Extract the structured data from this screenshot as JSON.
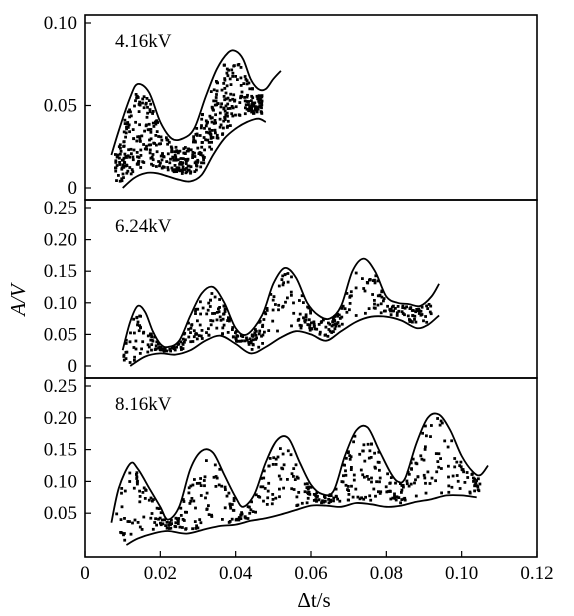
{
  "chart_data": [
    {
      "type": "scatter",
      "panel_label": "4.16kV",
      "xlim": [
        0,
        0.12
      ],
      "ylim": [
        0,
        0.1
      ],
      "yticks": [
        0,
        0.05,
        0.1
      ],
      "ytick_labels": [
        "0",
        "0.05",
        "0.10"
      ],
      "upper_envelope": [
        [
          0.007,
          0.02
        ],
        [
          0.009,
          0.035
        ],
        [
          0.012,
          0.055
        ],
        [
          0.014,
          0.063
        ],
        [
          0.017,
          0.058
        ],
        [
          0.02,
          0.04
        ],
        [
          0.023,
          0.03
        ],
        [
          0.026,
          0.03
        ],
        [
          0.029,
          0.036
        ],
        [
          0.032,
          0.055
        ],
        [
          0.035,
          0.072
        ],
        [
          0.038,
          0.082
        ],
        [
          0.04,
          0.083
        ],
        [
          0.042,
          0.078
        ],
        [
          0.044,
          0.066
        ],
        [
          0.046,
          0.06
        ],
        [
          0.048,
          0.06
        ],
        [
          0.05,
          0.066
        ],
        [
          0.052,
          0.071
        ]
      ],
      "lower_envelope": [
        [
          0.01,
          0.0
        ],
        [
          0.013,
          0.006
        ],
        [
          0.016,
          0.009
        ],
        [
          0.019,
          0.009
        ],
        [
          0.022,
          0.007
        ],
        [
          0.025,
          0.005
        ],
        [
          0.028,
          0.004
        ],
        [
          0.031,
          0.008
        ],
        [
          0.034,
          0.02
        ],
        [
          0.037,
          0.03
        ],
        [
          0.04,
          0.036
        ],
        [
          0.043,
          0.04
        ],
        [
          0.046,
          0.042
        ],
        [
          0.048,
          0.04
        ]
      ],
      "point_cloud": {
        "x_range": [
          0.008,
          0.047
        ],
        "approx_points": 520
      }
    },
    {
      "type": "scatter",
      "panel_label": "6.24kV",
      "xlim": [
        0,
        0.12
      ],
      "ylim": [
        0,
        0.25
      ],
      "yticks": [
        0,
        0.05,
        0.1,
        0.15,
        0.2,
        0.25
      ],
      "ytick_labels": [
        "0",
        "0.05",
        "0.10",
        "0.15",
        "0.20",
        "0.25"
      ],
      "upper_envelope": [
        [
          0.01,
          0.025
        ],
        [
          0.012,
          0.07
        ],
        [
          0.014,
          0.095
        ],
        [
          0.016,
          0.085
        ],
        [
          0.018,
          0.055
        ],
        [
          0.02,
          0.035
        ],
        [
          0.022,
          0.03
        ],
        [
          0.025,
          0.04
        ],
        [
          0.028,
          0.08
        ],
        [
          0.031,
          0.115
        ],
        [
          0.034,
          0.125
        ],
        [
          0.037,
          0.1
        ],
        [
          0.04,
          0.06
        ],
        [
          0.043,
          0.05
        ],
        [
          0.047,
          0.08
        ],
        [
          0.05,
          0.13
        ],
        [
          0.053,
          0.155
        ],
        [
          0.056,
          0.14
        ],
        [
          0.059,
          0.1
        ],
        [
          0.062,
          0.08
        ],
        [
          0.065,
          0.075
        ],
        [
          0.068,
          0.095
        ],
        [
          0.071,
          0.15
        ],
        [
          0.074,
          0.17
        ],
        [
          0.077,
          0.15
        ],
        [
          0.08,
          0.11
        ],
        [
          0.083,
          0.1
        ],
        [
          0.086,
          0.098
        ],
        [
          0.089,
          0.095
        ],
        [
          0.092,
          0.11
        ],
        [
          0.094,
          0.13
        ]
      ],
      "lower_envelope": [
        [
          0.012,
          0.0
        ],
        [
          0.016,
          0.015
        ],
        [
          0.02,
          0.02
        ],
        [
          0.024,
          0.018
        ],
        [
          0.028,
          0.025
        ],
        [
          0.032,
          0.04
        ],
        [
          0.036,
          0.048
        ],
        [
          0.04,
          0.035
        ],
        [
          0.044,
          0.02
        ],
        [
          0.048,
          0.03
        ],
        [
          0.052,
          0.045
        ],
        [
          0.056,
          0.055
        ],
        [
          0.06,
          0.05
        ],
        [
          0.064,
          0.04
        ],
        [
          0.068,
          0.055
        ],
        [
          0.072,
          0.07
        ],
        [
          0.076,
          0.078
        ],
        [
          0.08,
          0.078
        ],
        [
          0.084,
          0.072
        ],
        [
          0.088,
          0.06
        ],
        [
          0.091,
          0.065
        ],
        [
          0.094,
          0.08
        ]
      ],
      "point_cloud": {
        "x_range": [
          0.01,
          0.092
        ],
        "approx_points": 420
      }
    },
    {
      "type": "scatter",
      "panel_label": "8.16kV",
      "xlim": [
        0,
        0.12
      ],
      "ylim": [
        0,
        0.25
      ],
      "xticks": [
        0,
        0.02,
        0.04,
        0.06,
        0.08,
        0.1,
        0.12
      ],
      "xtick_labels": [
        "0",
        "0.02",
        "0.04",
        "0.06",
        "0.08",
        "0.10",
        "0.12"
      ],
      "yticks": [
        0.05,
        0.1,
        0.15,
        0.2,
        0.25
      ],
      "ytick_labels": [
        "0.05",
        "0.10",
        "0.15",
        "0.20",
        "0.25"
      ],
      "upper_envelope": [
        [
          0.007,
          0.035
        ],
        [
          0.009,
          0.09
        ],
        [
          0.012,
          0.128
        ],
        [
          0.014,
          0.12
        ],
        [
          0.017,
          0.09
        ],
        [
          0.02,
          0.06
        ],
        [
          0.022,
          0.04
        ],
        [
          0.025,
          0.06
        ],
        [
          0.028,
          0.12
        ],
        [
          0.031,
          0.148
        ],
        [
          0.034,
          0.145
        ],
        [
          0.037,
          0.11
        ],
        [
          0.04,
          0.075
        ],
        [
          0.042,
          0.06
        ],
        [
          0.045,
          0.08
        ],
        [
          0.048,
          0.13
        ],
        [
          0.051,
          0.165
        ],
        [
          0.054,
          0.168
        ],
        [
          0.057,
          0.13
        ],
        [
          0.06,
          0.095
        ],
        [
          0.063,
          0.08
        ],
        [
          0.066,
          0.085
        ],
        [
          0.069,
          0.14
        ],
        [
          0.072,
          0.18
        ],
        [
          0.075,
          0.185
        ],
        [
          0.078,
          0.15
        ],
        [
          0.081,
          0.115
        ],
        [
          0.083,
          0.1
        ],
        [
          0.085,
          0.105
        ],
        [
          0.088,
          0.16
        ],
        [
          0.091,
          0.2
        ],
        [
          0.094,
          0.205
        ],
        [
          0.097,
          0.18
        ],
        [
          0.1,
          0.14
        ],
        [
          0.103,
          0.115
        ],
        [
          0.105,
          0.11
        ],
        [
          0.107,
          0.125
        ]
      ],
      "lower_envelope": [
        [
          0.011,
          0.0
        ],
        [
          0.014,
          0.01
        ],
        [
          0.018,
          0.018
        ],
        [
          0.022,
          0.022
        ],
        [
          0.027,
          0.018
        ],
        [
          0.032,
          0.025
        ],
        [
          0.036,
          0.03
        ],
        [
          0.04,
          0.032
        ],
        [
          0.044,
          0.038
        ],
        [
          0.048,
          0.042
        ],
        [
          0.052,
          0.048
        ],
        [
          0.056,
          0.055
        ],
        [
          0.06,
          0.062
        ],
        [
          0.064,
          0.062
        ],
        [
          0.068,
          0.06
        ],
        [
          0.072,
          0.066
        ],
        [
          0.076,
          0.064
        ],
        [
          0.08,
          0.06
        ],
        [
          0.084,
          0.062
        ],
        [
          0.088,
          0.068
        ],
        [
          0.092,
          0.072
        ],
        [
          0.096,
          0.078
        ],
        [
          0.1,
          0.078
        ],
        [
          0.104,
          0.075
        ]
      ],
      "point_cloud": {
        "x_range": [
          0.008,
          0.105
        ],
        "approx_points": 460
      }
    }
  ],
  "xlabel": "Δt/s",
  "ylabel": "A/V",
  "colors": {
    "ink": "#000000",
    "background": "#ffffff"
  }
}
